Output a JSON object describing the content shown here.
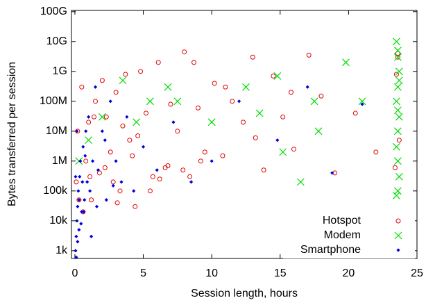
{
  "chart_data": {
    "type": "scatter",
    "xlabel": "Session length, hours",
    "ylabel": "Bytes transferred per session",
    "xlim": [
      -0.25,
      25
    ],
    "xticks": [
      0,
      5,
      10,
      15,
      20,
      25
    ],
    "ylim": [
      550,
      110000000000
    ],
    "ylog": true,
    "yticks": [
      {
        "value": 1000,
        "label": "1k"
      },
      {
        "value": 10000,
        "label": "10k"
      },
      {
        "value": 100000,
        "label": "100k"
      },
      {
        "value": 1000000,
        "label": "1M"
      },
      {
        "value": 10000000,
        "label": "10M"
      },
      {
        "value": 100000000,
        "label": "100M"
      },
      {
        "value": 1000000000,
        "label": "1G"
      },
      {
        "value": 10000000000,
        "label": "10G"
      },
      {
        "value": 100000000000,
        "label": "100G"
      }
    ],
    "legend": "lower right",
    "series": [
      {
        "name": "Hotspot",
        "color": "#e00000",
        "marker": "circle",
        "x": [
          0.1,
          0.3,
          0.5,
          0.8,
          1.0,
          1.2,
          1.5,
          1.8,
          2.0,
          2.3,
          2.6,
          3.0,
          3.3,
          3.7,
          4.0,
          4.4,
          4.8,
          5.2,
          5.7,
          6.1,
          6.6,
          7.0,
          7.5,
          8.0,
          8.4,
          9.0,
          9.5,
          10.2,
          10.8,
          11.5,
          12.3,
          13.0,
          13.8,
          14.5,
          15.2,
          16.0,
          17.1,
          18.0,
          19.0,
          20.5,
          22.0,
          23.5,
          23.6,
          23.7,
          23.6,
          0.6,
          1.4,
          2.8,
          3.5,
          4.2,
          5.5,
          6.8,
          8.7,
          0.2,
          1.1,
          2.2,
          3.1,
          4.6,
          6.2,
          7.9,
          9.2,
          11.0,
          13.2,
          15.8,
          23.4
        ],
        "y": [
          200000,
          50000,
          300000000,
          1000000,
          20000000,
          50000,
          100000000,
          400000,
          500000000,
          30000000,
          2000000,
          200000000,
          100000,
          800000000,
          5000000,
          30000,
          1000000000,
          40000000,
          300000,
          2000000000,
          600000,
          80000000,
          10000000,
          4500000000,
          300000,
          60000000,
          2000000,
          400000000,
          1500000,
          100000000,
          20000000,
          3000000000,
          500000,
          700000000,
          30000000,
          2500000,
          3500000000,
          150000000,
          400000,
          40000000,
          2000000,
          800000000,
          3000000000,
          5000000,
          4000000000,
          20000,
          30000000,
          200000,
          15000000,
          1500000,
          100000,
          700000,
          2000000000,
          10000000,
          300000,
          600000,
          40000,
          7000000,
          250000,
          500000,
          1000000,
          300000000,
          6000000,
          200000000,
          600000
        ],
        "x_cluster_note_free": null
      },
      {
        "name": "Modem",
        "color": "#00dd00",
        "marker": "cross",
        "x": [
          6.8,
          7.5,
          10.0,
          12.5,
          13.5,
          14.8,
          15.2,
          16.5,
          17.5,
          17.8,
          19.8,
          21.0,
          2.0,
          3.5,
          1.0,
          4.5,
          5.5,
          0.3,
          23.5,
          23.6,
          23.7,
          23.6,
          23.5,
          23.7,
          23.6,
          23.5,
          23.6,
          23.7,
          23.6,
          23.5,
          23.6,
          23.7,
          23.6
        ],
        "y": [
          300000000,
          100000000,
          20000000,
          300000000,
          40000000,
          700000000,
          2000000,
          200000,
          100000000,
          10000000,
          2000000000,
          100000000,
          30000000,
          500000000,
          5000000,
          20000000,
          100000000,
          1000000,
          10000000000,
          3000000000,
          1000000000,
          300000000,
          100000000,
          30000000,
          10000000,
          3000000,
          1000000,
          300000,
          100000,
          70000,
          5000000000,
          500000000,
          50000000
        ]
      },
      {
        "name": "Smartphone",
        "color": "#0000dd",
        "marker": "diamond",
        "x": [
          0.05,
          0.1,
          0.15,
          0.2,
          0.25,
          0.3,
          0.35,
          0.4,
          0.5,
          0.6,
          0.7,
          0.8,
          0.9,
          1.0,
          1.1,
          1.3,
          1.5,
          1.7,
          2.0,
          2.3,
          2.6,
          3.0,
          3.4,
          3.8,
          4.3,
          5.0,
          6.0,
          7.2,
          8.5,
          10.0,
          12.0,
          14.8,
          17.0,
          18.8,
          21.0,
          0.1,
          0.2,
          0.3,
          0.45,
          0.55,
          0.65,
          0.75,
          0.15,
          0.05,
          1.2,
          1.6,
          2.2,
          2.8
        ],
        "y": [
          1000,
          3000,
          10000,
          30000,
          100000,
          5000,
          300000,
          1000000,
          20000,
          3000000,
          50000,
          10000000,
          200000,
          30000000,
          100000,
          1000000,
          300000000,
          500000,
          10000000,
          50000,
          100000000,
          1000000,
          200000,
          30000000,
          100000,
          3000000,
          500000,
          20000000,
          200000,
          1000000,
          100000000,
          5000000,
          300000000,
          400000,
          80000000,
          600,
          2000,
          50000,
          8000,
          200000,
          20000,
          1500000,
          10000000,
          300000,
          3000,
          30000,
          5000000,
          150000
        ]
      }
    ]
  }
}
